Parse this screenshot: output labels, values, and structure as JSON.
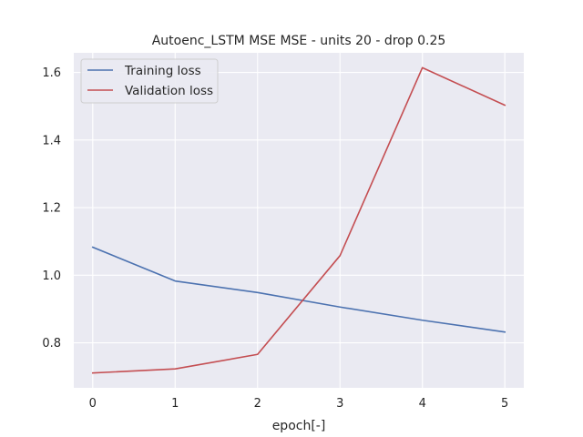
{
  "chart_data": {
    "type": "line",
    "title": "Autoenc_LSTM MSE MSE - units 20 - drop 0.25",
    "xlabel": "epoch[-]",
    "ylabel": "",
    "x": [
      0,
      1,
      2,
      3,
      4,
      5
    ],
    "xticks": [
      "0",
      "1",
      "2",
      "3",
      "4",
      "5"
    ],
    "yticks": [
      "0.8",
      "1.0",
      "1.2",
      "1.4",
      "1.6"
    ],
    "xlim": [
      -0.23,
      5.23
    ],
    "ylim": [
      0.667,
      1.658
    ],
    "grid": true,
    "legend_position": "upper-left",
    "background": "#eaeaf2",
    "series": [
      {
        "name": "Training loss",
        "color": "#4c72b0",
        "values": [
          1.083,
          0.983,
          0.949,
          0.906,
          0.867,
          0.832
        ]
      },
      {
        "name": "Validation loss",
        "color": "#c44e52",
        "values": [
          0.711,
          0.723,
          0.766,
          1.058,
          1.614,
          1.503
        ]
      }
    ]
  }
}
